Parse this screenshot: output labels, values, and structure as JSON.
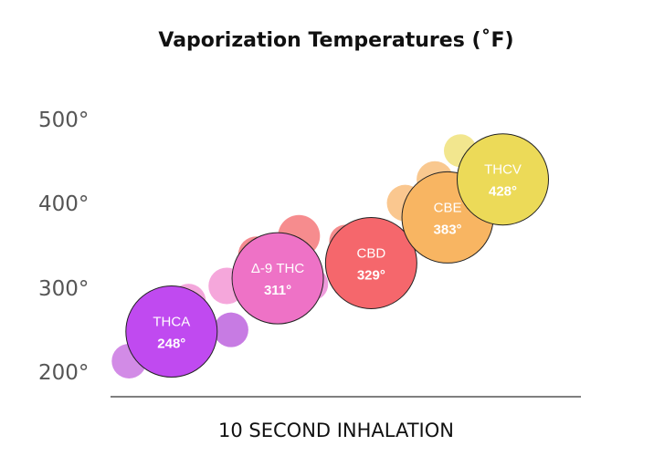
{
  "chart_data": {
    "type": "scatter",
    "title": "Vaporization Temperatures (˚F)",
    "xlabel": "10 SECOND INHALATION",
    "ylabel": "",
    "y_ticks": [
      "200°",
      "300°",
      "400°",
      "500°"
    ],
    "y_tick_values": [
      200,
      300,
      400,
      500
    ],
    "ylim": [
      180,
      525
    ],
    "xlim": [
      0,
      10
    ],
    "grid": false,
    "legend": "none",
    "series": [
      {
        "label": "THCA",
        "value_label": "248°",
        "x": 1.2,
        "y": 248,
        "r": 50,
        "color": "#C04AF0"
      },
      {
        "label": "Δ-9 THC",
        "value_label": "311°",
        "x": 3.7,
        "y": 311,
        "r": 50,
        "color": "#EE72C6"
      },
      {
        "label": "CBD",
        "value_label": "329°",
        "x": 5.9,
        "y": 329,
        "r": 50,
        "color": "#F5676C"
      },
      {
        "label": "CBE",
        "value_label": "383°",
        "x": 7.7,
        "y": 383,
        "r": 50,
        "color": "#F8B562"
      },
      {
        "label": "THCV",
        "value_label": "428°",
        "x": 9.0,
        "y": 428,
        "r": 50,
        "color": "#ECDA58"
      }
    ],
    "decorative_points": [
      {
        "x": 0.2,
        "y": 213,
        "r": 19,
        "color": "#D28BE6"
      },
      {
        "x": 2.6,
        "y": 250,
        "r": 19,
        "color": "#C77BE3"
      },
      {
        "x": 1.6,
        "y": 284,
        "r": 19,
        "color": "#F3A6DB"
      },
      {
        "x": 2.5,
        "y": 302,
        "r": 20,
        "color": "#F5A7DB"
      },
      {
        "x": 3.1,
        "y": 309,
        "r": 15,
        "color": "#F7A8DA"
      },
      {
        "x": 4.5,
        "y": 304,
        "r": 18,
        "color": "#EE9BDB"
      },
      {
        "x": 3.2,
        "y": 339,
        "r": 20,
        "color": "#F58A90"
      },
      {
        "x": 4.2,
        "y": 361,
        "r": 23,
        "color": "#F68C8E"
      },
      {
        "x": 5.3,
        "y": 355,
        "r": 18,
        "color": "#F58C8D"
      },
      {
        "x": 6.7,
        "y": 400,
        "r": 20,
        "color": "#FAC78F"
      },
      {
        "x": 7.4,
        "y": 428,
        "r": 20,
        "color": "#F9C88F"
      },
      {
        "x": 7.2,
        "y": 374,
        "r": 13,
        "color": "#FAC48D"
      },
      {
        "x": 8.0,
        "y": 462,
        "r": 18,
        "color": "#F2E68E"
      },
      {
        "x": 8.6,
        "y": 435,
        "r": 20,
        "color": "#F1E28C"
      }
    ]
  }
}
